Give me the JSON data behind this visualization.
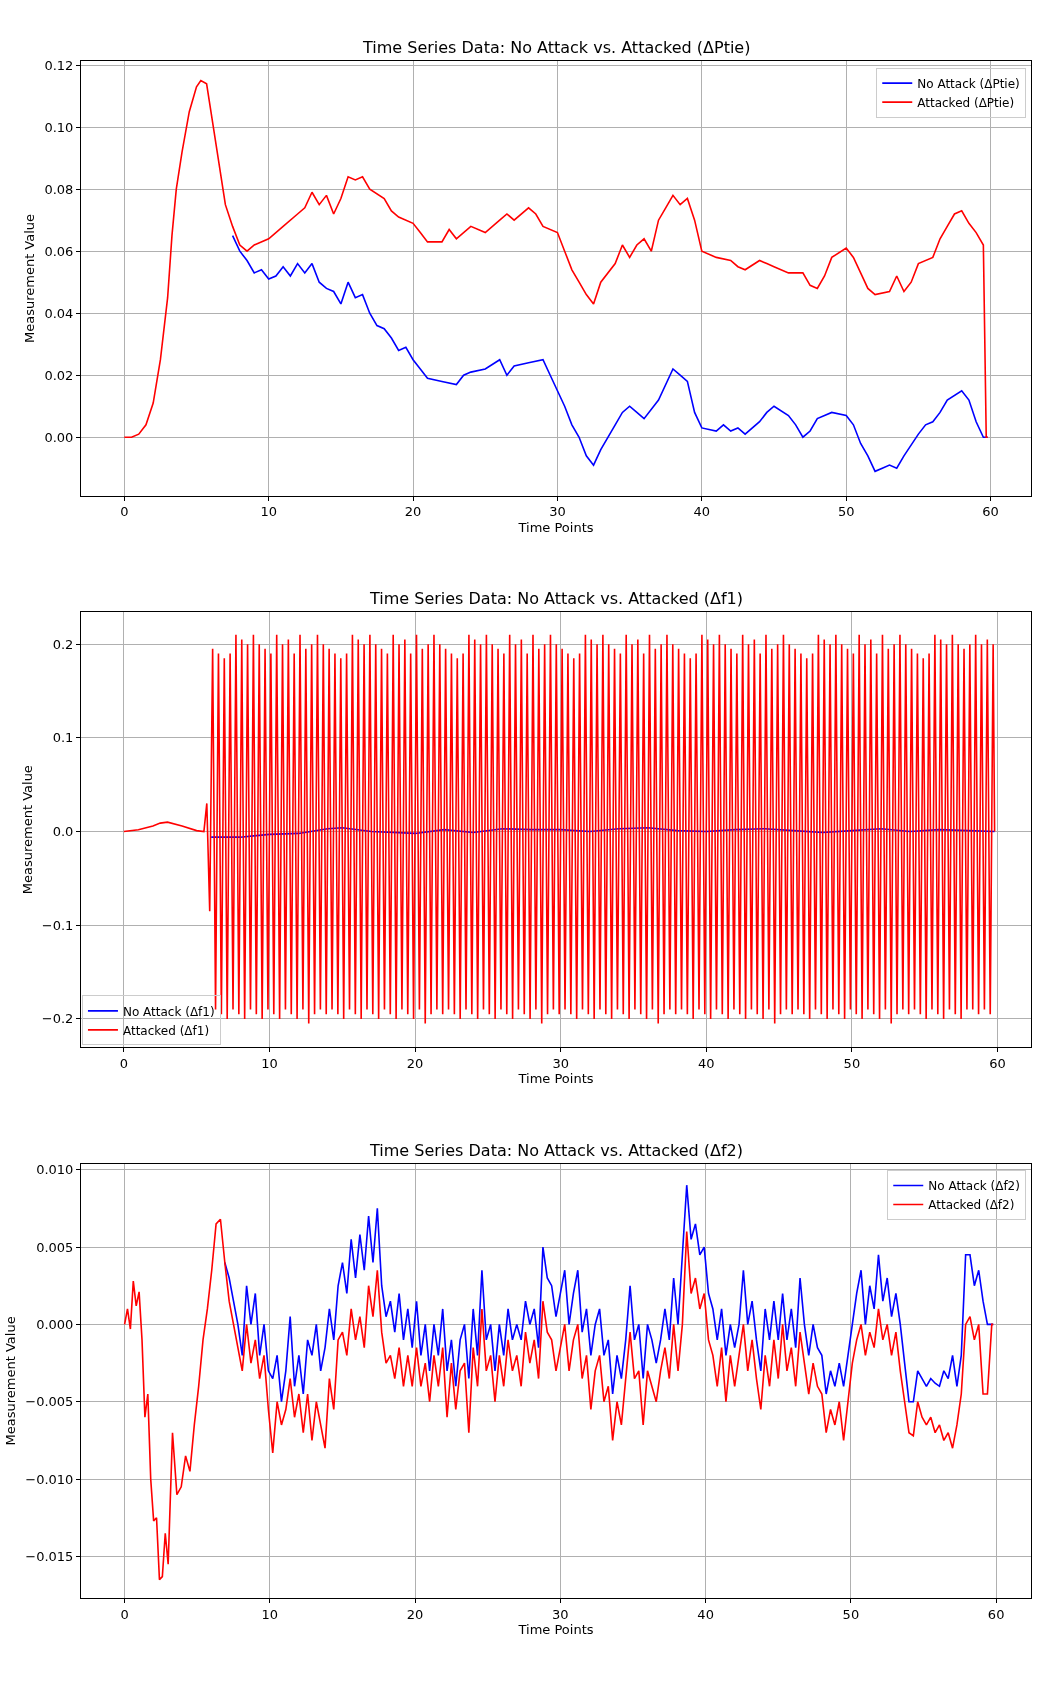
{
  "chart_data": [
    {
      "type": "line",
      "title": "Time Series Data: No Attack vs. Attacked (ΔPtie)",
      "xlabel": "Time Points",
      "ylabel": "Measurement Value",
      "grid": true,
      "legend": "top right",
      "xlim": [
        -3,
        62.8
      ],
      "ylim": [
        -0.0189,
        0.1213
      ],
      "xticks": [
        0,
        10,
        20,
        30,
        40,
        50,
        60
      ],
      "yticks": [
        {
          "value": 0,
          "label": "0.00"
        },
        {
          "value": 0.02,
          "label": "0.02"
        },
        {
          "value": 0.04,
          "label": "0.04"
        },
        {
          "value": 0.06,
          "label": "0.06"
        },
        {
          "value": 0.08,
          "label": "0.08"
        },
        {
          "value": 0.1,
          "label": "0.10"
        },
        {
          "value": 0.12,
          "label": "0.12"
        }
      ],
      "series": [
        {
          "name": "No Attack (ΔPtie)",
          "color": "#0000ff",
          "x": [
            7.5,
            8,
            8.5,
            9,
            9.5,
            10,
            10.5,
            11,
            11.5,
            12,
            12.5,
            13,
            13.5,
            14,
            14.5,
            15,
            15.5,
            16,
            16.5,
            17,
            17.5,
            18,
            18.5,
            19,
            19.5,
            20,
            20.5,
            21,
            22,
            23,
            23.5,
            24,
            25,
            26,
            26.5,
            27,
            28,
            29,
            29.5,
            30,
            30.5,
            31,
            31.5,
            32,
            32.5,
            33,
            34,
            34.5,
            35,
            35.5,
            36,
            37,
            38,
            38.5,
            39,
            39.5,
            40,
            41,
            41.5,
            42,
            42.5,
            43,
            44,
            44.5,
            45,
            46,
            46.5,
            47,
            47.5,
            48,
            49,
            50,
            50.5,
            51,
            51.5,
            52,
            52.5,
            53,
            53.5,
            54,
            55,
            55.5,
            56,
            56.5,
            57,
            58,
            58.5,
            59,
            59.5,
            59.8
          ],
          "values": [
            0.065,
            0.06,
            0.057,
            0.053,
            0.054,
            0.051,
            0.052,
            0.055,
            0.052,
            0.056,
            0.053,
            0.056,
            0.05,
            0.048,
            0.047,
            0.043,
            0.05,
            0.045,
            0.046,
            0.04,
            0.036,
            0.035,
            0.032,
            0.028,
            0.029,
            0.025,
            0.022,
            0.019,
            0.018,
            0.017,
            0.02,
            0.021,
            0.022,
            0.025,
            0.02,
            0.023,
            0.024,
            0.025,
            0.02,
            0.015,
            0.01,
            0.004,
            0.0,
            -0.006,
            -0.009,
            -0.004,
            0.004,
            0.008,
            0.01,
            0.008,
            0.006,
            0.012,
            0.022,
            0.02,
            0.018,
            0.008,
            0.003,
            0.002,
            0.004,
            0.002,
            0.003,
            0.001,
            0.005,
            0.008,
            0.01,
            0.007,
            0.004,
            0.0,
            0.002,
            0.006,
            0.008,
            0.007,
            0.004,
            -0.002,
            -0.006,
            -0.011,
            -0.01,
            -0.009,
            -0.01,
            -0.006,
            0.001,
            0.004,
            0.005,
            0.008,
            0.012,
            0.015,
            0.012,
            0.005,
            0.0,
            0.0
          ]
        },
        {
          "name": "Attacked (ΔPtie)",
          "color": "#ff0000",
          "x": [
            0,
            0.5,
            1,
            1.5,
            2,
            2.5,
            3,
            3.3,
            3.6,
            4,
            4.5,
            5,
            5.3,
            5.7,
            6,
            6.5,
            7,
            7.5,
            8,
            8.5,
            9,
            10,
            11,
            12,
            12.5,
            13,
            13.5,
            14,
            14.5,
            15,
            15.5,
            16,
            16.5,
            17,
            18,
            18.5,
            19,
            20,
            20.5,
            21,
            22,
            22.5,
            23,
            24,
            25,
            26,
            26.5,
            27,
            28,
            28.5,
            29,
            30,
            30.5,
            31,
            31.5,
            32,
            32.5,
            33,
            34,
            34.5,
            35,
            35.5,
            36,
            36.5,
            37,
            37.5,
            38,
            38.5,
            39,
            39.5,
            40,
            41,
            42,
            42.5,
            43,
            44,
            44.5,
            45,
            46,
            47,
            47.5,
            48,
            48.5,
            49,
            50,
            50.5,
            51,
            51.5,
            52,
            53,
            53.5,
            54,
            54.5,
            55,
            56,
            56.5,
            57,
            57.5,
            58,
            58.5,
            59,
            59.5,
            59.7,
            59.8
          ],
          "values": [
            0,
            0,
            0.001,
            0.004,
            0.011,
            0.025,
            0.045,
            0.065,
            0.08,
            0.092,
            0.105,
            0.113,
            0.115,
            0.114,
            0.105,
            0.09,
            0.075,
            0.068,
            0.062,
            0.06,
            0.062,
            0.064,
            0.068,
            0.072,
            0.074,
            0.079,
            0.075,
            0.078,
            0.072,
            0.077,
            0.084,
            0.083,
            0.084,
            0.08,
            0.077,
            0.073,
            0.071,
            0.069,
            0.066,
            0.063,
            0.063,
            0.067,
            0.064,
            0.068,
            0.066,
            0.07,
            0.072,
            0.07,
            0.074,
            0.072,
            0.068,
            0.066,
            0.06,
            0.054,
            0.05,
            0.046,
            0.043,
            0.05,
            0.056,
            0.062,
            0.058,
            0.062,
            0.064,
            0.06,
            0.07,
            0.074,
            0.078,
            0.075,
            0.077,
            0.07,
            0.06,
            0.058,
            0.057,
            0.055,
            0.054,
            0.057,
            0.056,
            0.055,
            0.053,
            0.053,
            0.049,
            0.048,
            0.052,
            0.058,
            0.061,
            0.058,
            0.053,
            0.048,
            0.046,
            0.047,
            0.052,
            0.047,
            0.05,
            0.056,
            0.058,
            0.064,
            0.068,
            0.072,
            0.073,
            0.069,
            0.066,
            0.062,
            0.0,
            0.0
          ]
        }
      ]
    },
    {
      "type": "line",
      "title": "Time Series Data: No Attack vs. Attacked (Δf1)",
      "xlabel": "Time Points",
      "ylabel": "Measurement Value",
      "grid": true,
      "legend": "bottom left",
      "xlim": [
        -2.94,
        62.3
      ],
      "ylim": [
        -0.23,
        0.234
      ],
      "xticks": [
        0,
        10,
        20,
        30,
        40,
        50,
        60
      ],
      "yticks": [
        {
          "value": -0.2,
          "label": "−0.2"
        },
        {
          "value": -0.1,
          "label": "−0.1"
        },
        {
          "value": 0,
          "label": "0.0"
        },
        {
          "value": 0.1,
          "label": "0.1"
        },
        {
          "value": 0.2,
          "label": "0.2"
        }
      ],
      "series": [
        {
          "name": "No Attack (Δf1)",
          "color": "#0000ff",
          "x": [
            6,
            8,
            10,
            12,
            14,
            15,
            17,
            20,
            22,
            24,
            26,
            28,
            30,
            32,
            34,
            36,
            38,
            40,
            42,
            44,
            46,
            48,
            50,
            52,
            54,
            56,
            58,
            59.8
          ],
          "values": [
            -0.006,
            -0.006,
            -0.003,
            -0.002,
            0.003,
            0.004,
            0.0,
            -0.002,
            0.002,
            -0.001,
            0.003,
            0.002,
            0.002,
            0.0,
            0.003,
            0.004,
            0.001,
            0.0,
            0.002,
            0.003,
            0.001,
            -0.001,
            0.001,
            0.003,
            0.0,
            0.002,
            0.001,
            0.0
          ]
        },
        {
          "name": "Attacked (Δf1)",
          "color": "#ff0000",
          "x": [
            0,
            1,
            2,
            2.5,
            3,
            4,
            5,
            5.5,
            5.7,
            5.9,
            6.1,
            6.3,
            6.5,
            6.7,
            6.9,
            7.1,
            7.3,
            7.5,
            7.7,
            7.9,
            8.1,
            8.3,
            8.5,
            8.7,
            8.9,
            9.1,
            9.3,
            9.5,
            9.7,
            9.9,
            10.1,
            10.3,
            10.5,
            10.7,
            10.9,
            11.1,
            11.3,
            11.5,
            11.7,
            11.9,
            12.1,
            12.3,
            12.5,
            12.7,
            12.9,
            13.1,
            13.3,
            13.5,
            13.7,
            13.9,
            14.1,
            14.3,
            14.5,
            14.7,
            14.9,
            15.1,
            15.3,
            15.5,
            15.7,
            15.9,
            16.1,
            16.3,
            16.5,
            16.7,
            16.9,
            17.1,
            17.3,
            17.5,
            17.7,
            17.9,
            18.1,
            18.3,
            18.5,
            18.7,
            18.9,
            19.1,
            19.3,
            19.5,
            19.7,
            19.9,
            20.1,
            20.3,
            20.5,
            20.7,
            20.9,
            21.1,
            21.3,
            21.5,
            21.7,
            21.9,
            22.1,
            22.3,
            22.5,
            22.7,
            22.9,
            23.1,
            23.3,
            23.5,
            23.7,
            23.9,
            24.1,
            24.3,
            24.5,
            24.7,
            24.9,
            25.1,
            25.3,
            25.5,
            25.7,
            25.9,
            26.1,
            26.3,
            26.5,
            26.7,
            26.9,
            27.1,
            27.3,
            27.5,
            27.7,
            27.9,
            28.1,
            28.3,
            28.5,
            28.7,
            28.9,
            29.1,
            29.3,
            29.5,
            29.7,
            29.9,
            30.1,
            30.3,
            30.5,
            30.7,
            30.9,
            31.1,
            31.3,
            31.5,
            31.7,
            31.9,
            32.1,
            32.3,
            32.5,
            32.7,
            32.9,
            33.1,
            33.3,
            33.5,
            33.7,
            33.9,
            34.1,
            34.3,
            34.5,
            34.7,
            34.9,
            35.1,
            35.3,
            35.5,
            35.7,
            35.9,
            36.1,
            36.3,
            36.5,
            36.7,
            36.9,
            37.1,
            37.3,
            37.5,
            37.7,
            37.9,
            38.1,
            38.3,
            38.5,
            38.7,
            38.9,
            39.1,
            39.3,
            39.5,
            39.7,
            39.9,
            40.1,
            40.3,
            40.5,
            40.7,
            40.9,
            41.1,
            41.3,
            41.5,
            41.7,
            41.9,
            42.1,
            42.3,
            42.5,
            42.7,
            42.9,
            43.1,
            43.3,
            43.5,
            43.7,
            43.9,
            44.1,
            44.3,
            44.5,
            44.7,
            44.9,
            45.1,
            45.3,
            45.5,
            45.7,
            45.9,
            46.1,
            46.3,
            46.5,
            46.7,
            46.9,
            47.1,
            47.3,
            47.5,
            47.7,
            47.9,
            48.1,
            48.3,
            48.5,
            48.7,
            48.9,
            49.1,
            49.3,
            49.5,
            49.7,
            49.9,
            50.1,
            50.3,
            50.5,
            50.7,
            50.9,
            51.1,
            51.3,
            51.5,
            51.7,
            51.9,
            52.1,
            52.3,
            52.5,
            52.7,
            52.9,
            53.1,
            53.3,
            53.5,
            53.7,
            53.9,
            54.1,
            54.3,
            54.5,
            54.7,
            54.9,
            55.1,
            55.3,
            55.5,
            55.7,
            55.9,
            56.1,
            56.3,
            56.5,
            56.7,
            56.9,
            57.1,
            57.3,
            57.5,
            57.7,
            57.9,
            58.1,
            58.3,
            58.5,
            58.7,
            58.9,
            59.1,
            59.3,
            59.5,
            59.7,
            59.8
          ],
          "values": [
            0,
            0.002,
            0.006,
            0.009,
            0.01,
            0.006,
            0.001,
            0.0,
            0.03,
            -0.085,
            0.195,
            -0.19,
            0.19,
            -0.195,
            0.185,
            -0.2,
            0.19,
            -0.19,
            0.21,
            -0.195,
            0.205,
            -0.2,
            0.2,
            -0.19,
            0.21,
            -0.195,
            0.2,
            -0.2,
            0.195,
            -0.19,
            0.19,
            -0.195,
            0.21,
            -0.2,
            0.2,
            -0.19,
            0.205,
            -0.195,
            0.19,
            -0.2,
            0.21,
            -0.19,
            0.195,
            -0.205,
            0.2,
            -0.195,
            0.21,
            -0.19,
            0.2,
            -0.195,
            0.195,
            -0.19,
            0.19,
            -0.195,
            0.185,
            -0.2,
            0.19,
            -0.19,
            0.21,
            -0.195,
            0.205,
            -0.2,
            0.2,
            -0.19,
            0.21,
            -0.195,
            0.2,
            -0.2,
            0.195,
            -0.19,
            0.19,
            -0.195,
            0.21,
            -0.2,
            0.2,
            -0.19,
            0.205,
            -0.195,
            0.19,
            -0.2,
            0.21,
            -0.19,
            0.195,
            -0.205,
            0.2,
            -0.195,
            0.21,
            -0.19,
            0.2,
            -0.195,
            0.195,
            -0.19,
            0.19,
            -0.195,
            0.185,
            -0.2,
            0.19,
            -0.19,
            0.21,
            -0.195,
            0.205,
            -0.2,
            0.2,
            -0.19,
            0.21,
            -0.195,
            0.2,
            -0.2,
            0.195,
            -0.19,
            0.19,
            -0.195,
            0.21,
            -0.2,
            0.2,
            -0.19,
            0.205,
            -0.195,
            0.19,
            -0.2,
            0.21,
            -0.19,
            0.195,
            -0.205,
            0.2,
            -0.195,
            0.21,
            -0.19,
            0.2,
            -0.195,
            0.195,
            -0.19,
            0.19,
            -0.195,
            0.185,
            -0.2,
            0.19,
            -0.19,
            0.21,
            -0.195,
            0.205,
            -0.2,
            0.2,
            -0.19,
            0.21,
            -0.195,
            0.2,
            -0.2,
            0.195,
            -0.19,
            0.19,
            -0.195,
            0.21,
            -0.2,
            0.2,
            -0.19,
            0.205,
            -0.195,
            0.19,
            -0.2,
            0.21,
            -0.19,
            0.195,
            -0.205,
            0.2,
            -0.195,
            0.21,
            -0.19,
            0.2,
            -0.195,
            0.195,
            -0.19,
            0.19,
            -0.195,
            0.185,
            -0.2,
            0.19,
            -0.19,
            0.21,
            -0.195,
            0.205,
            -0.2,
            0.2,
            -0.19,
            0.21,
            -0.195,
            0.2,
            -0.2,
            0.195,
            -0.19,
            0.19,
            -0.195,
            0.21,
            -0.2,
            0.2,
            -0.19,
            0.205,
            -0.195,
            0.19,
            -0.2,
            0.21,
            -0.19,
            0.195,
            -0.205,
            0.2,
            -0.195,
            0.21,
            -0.19,
            0.2,
            -0.195,
            0.195,
            -0.19,
            0.19,
            -0.195,
            0.185,
            -0.2,
            0.19,
            -0.19,
            0.21,
            -0.195,
            0.205,
            -0.2,
            0.2,
            -0.19,
            0.21,
            -0.195,
            0.2,
            -0.2,
            0.195,
            -0.19,
            0.19,
            -0.195,
            0.21,
            -0.2,
            0.2,
            -0.19,
            0.205,
            -0.195,
            0.19,
            -0.2,
            0.21,
            -0.19,
            0.195,
            -0.205,
            0.2,
            -0.195,
            0.21,
            -0.19,
            0.2,
            -0.195,
            0.195,
            -0.19,
            0.19,
            -0.195,
            0.185,
            -0.2,
            0.19,
            -0.19,
            0.21,
            -0.195,
            0.205,
            -0.2,
            0.2,
            -0.19,
            0.21,
            -0.195,
            0.2,
            -0.2,
            0.195,
            -0.19,
            0.2,
            -0.19,
            0.21,
            -0.195,
            0.2,
            -0.19,
            0.205,
            -0.195,
            0.2,
            0.0
          ]
        }
      ]
    },
    {
      "type": "line",
      "title": "Time Series Data: No Attack vs. Attacked (Δf2)",
      "xlabel": "Time Points",
      "ylabel": "Measurement Value",
      "grid": true,
      "legend": "top right",
      "xlim": [
        -3,
        62.4
      ],
      "ylim": [
        -0.0177,
        0.0104
      ],
      "xticks": [
        0,
        10,
        20,
        30,
        40,
        50,
        60
      ],
      "yticks": [
        {
          "value": -0.015,
          "label": "−0.015"
        },
        {
          "value": -0.01,
          "label": "−0.010"
        },
        {
          "value": -0.005,
          "label": "−0.005"
        },
        {
          "value": 0,
          "label": "0.000"
        },
        {
          "value": 0.005,
          "label": "0.005"
        },
        {
          "value": 0.01,
          "label": "0.010"
        }
      ],
      "x": [
        0,
        0.2,
        0.4,
        0.6,
        0.8,
        1.0,
        1.2,
        1.4,
        1.6,
        1.8,
        2.0,
        2.2,
        2.4,
        2.6,
        2.8,
        3.0,
        3.3,
        3.6,
        3.9,
        4.2,
        4.5,
        4.8,
        5.1,
        5.4,
        5.7,
        6.0,
        6.3,
        6.6,
        6.9,
        7.2,
        7.5,
        7.8,
        8.1,
        8.4,
        8.7,
        9.0,
        9.3,
        9.6,
        9.9,
        10.2,
        10.5,
        10.8,
        11.1,
        11.4,
        11.7,
        12.0,
        12.3,
        12.6,
        12.9,
        13.2,
        13.5,
        13.8,
        14.1,
        14.4,
        14.7,
        15.0,
        15.3,
        15.6,
        15.9,
        16.2,
        16.5,
        16.8,
        17.1,
        17.4,
        17.7,
        18.0,
        18.3,
        18.6,
        18.9,
        19.2,
        19.5,
        19.8,
        20.1,
        20.4,
        20.7,
        21.0,
        21.3,
        21.6,
        21.9,
        22.2,
        22.5,
        22.8,
        23.1,
        23.4,
        23.7,
        24.0,
        24.3,
        24.6,
        24.9,
        25.2,
        25.5,
        25.8,
        26.1,
        26.4,
        26.7,
        27.0,
        27.3,
        27.6,
        27.9,
        28.2,
        28.5,
        28.8,
        29.1,
        29.4,
        29.7,
        30.0,
        30.3,
        30.6,
        30.9,
        31.2,
        31.5,
        31.8,
        32.1,
        32.4,
        32.7,
        33.0,
        33.3,
        33.6,
        33.9,
        34.2,
        34.5,
        34.8,
        35.1,
        35.4,
        35.7,
        36.0,
        36.3,
        36.6,
        36.9,
        37.2,
        37.5,
        37.8,
        38.1,
        38.4,
        38.7,
        39.0,
        39.3,
        39.6,
        39.9,
        40.2,
        40.5,
        40.8,
        41.1,
        41.4,
        41.7,
        42.0,
        42.3,
        42.6,
        42.9,
        43.2,
        43.5,
        43.8,
        44.1,
        44.4,
        44.7,
        45.0,
        45.3,
        45.6,
        45.9,
        46.2,
        46.5,
        46.8,
        47.1,
        47.4,
        47.7,
        48.0,
        48.3,
        48.6,
        48.9,
        49.2,
        49.5,
        49.8,
        50.1,
        50.4,
        50.7,
        51.0,
        51.3,
        51.6,
        51.9,
        52.2,
        52.5,
        52.8,
        53.1,
        53.4,
        53.7,
        54.0,
        54.3,
        54.6,
        54.9,
        55.2,
        55.5,
        55.8,
        56.1,
        56.4,
        56.7,
        57.0,
        57.3,
        57.6,
        57.9,
        58.2,
        58.5,
        58.8,
        59.1,
        59.4,
        59.7,
        59.8
      ],
      "series": [
        {
          "name": "No Attack (Δf2)",
          "color": "#0000ff",
          "x": [
            6.9,
            7.2,
            7.5,
            7.8,
            8.1,
            8.4,
            8.7,
            9.0,
            9.3,
            9.6,
            9.9,
            10.2,
            10.5,
            10.8,
            11.1,
            11.4,
            11.7,
            12.0,
            12.3,
            12.6,
            12.9,
            13.2,
            13.5,
            13.8,
            14.1,
            14.4,
            14.7,
            15.0,
            15.3,
            15.6,
            15.9,
            16.2,
            16.5,
            16.8,
            17.1,
            17.4,
            17.7,
            18.0,
            18.3,
            18.6,
            18.9,
            19.2,
            19.5,
            19.8,
            20.1,
            20.4,
            20.7,
            21.0,
            21.3,
            21.6,
            21.9,
            22.2,
            22.5,
            22.8,
            23.1,
            23.4,
            23.7,
            24.0,
            24.3,
            24.6,
            24.9,
            25.2,
            25.5,
            25.8,
            26.1,
            26.4,
            26.7,
            27.0,
            27.3,
            27.6,
            27.9,
            28.2,
            28.5,
            28.8,
            29.1,
            29.4,
            29.7,
            30.0,
            30.3,
            30.6,
            30.9,
            31.2,
            31.5,
            31.8,
            32.1,
            32.4,
            32.7,
            33.0,
            33.3,
            33.6,
            33.9,
            34.2,
            34.5,
            34.8,
            35.1,
            35.4,
            35.7,
            36.0,
            36.3,
            36.6,
            36.9,
            37.2,
            37.5,
            37.8,
            38.1,
            38.4,
            38.7,
            39.0,
            39.3,
            39.6,
            39.9,
            40.2,
            40.5,
            40.8,
            41.1,
            41.4,
            41.7,
            42.0,
            42.3,
            42.6,
            42.9,
            43.2,
            43.5,
            43.8,
            44.1,
            44.4,
            44.7,
            45.0,
            45.3,
            45.6,
            45.9,
            46.2,
            46.5,
            46.8,
            47.1,
            47.4,
            47.7,
            48.0,
            48.3,
            48.6,
            48.9,
            49.2,
            49.5,
            49.8,
            50.1,
            50.4,
            50.7,
            51.0,
            51.3,
            51.6,
            51.9,
            52.2,
            52.5,
            52.8,
            53.1,
            53.4,
            53.7,
            54.0,
            54.3,
            54.6,
            54.9,
            55.2,
            55.5,
            55.8,
            56.1,
            56.4,
            56.7,
            57.0,
            57.3,
            57.6,
            57.9,
            58.2,
            58.5,
            58.8,
            59.1,
            59.4,
            59.7,
            59.8
          ],
          "values": [
            0.004,
            0.003,
            0.0015,
            0.0,
            -0.002,
            0.0025,
            0.0,
            0.002,
            -0.002,
            0.0,
            -0.003,
            -0.0035,
            -0.002,
            -0.005,
            -0.003,
            0.0005,
            -0.004,
            -0.002,
            -0.0045,
            -0.001,
            -0.002,
            0.0,
            -0.003,
            -0.0015,
            0.001,
            -0.001,
            0.0025,
            0.004,
            0.002,
            0.0055,
            0.003,
            0.0058,
            0.0035,
            0.007,
            0.004,
            0.0075,
            0.0025,
            0.0005,
            0.0015,
            -0.0005,
            0.002,
            -0.001,
            0.001,
            -0.0015,
            0.0015,
            -0.002,
            0.0,
            -0.003,
            0.0,
            -0.002,
            0.001,
            -0.003,
            -0.001,
            -0.004,
            -0.001,
            0.0,
            -0.0035,
            0.001,
            -0.002,
            0.0035,
            -0.001,
            0.0,
            -0.003,
            0.0,
            -0.002,
            0.001,
            -0.001,
            0.0,
            -0.001,
            0.0015,
            0.0,
            0.001,
            -0.0015,
            0.005,
            0.003,
            0.0025,
            0.0005,
            0.002,
            0.0035,
            0.0,
            0.002,
            0.0035,
            -0.0005,
            0.001,
            -0.002,
            0.0,
            0.001,
            -0.002,
            -0.001,
            -0.0045,
            -0.002,
            -0.0035,
            -0.001,
            0.0025,
            -0.001,
            0.0,
            -0.0035,
            0.0,
            -0.001,
            -0.0025,
            -0.001,
            0.001,
            -0.001,
            0.003,
            0.0,
            0.0045,
            0.009,
            0.0055,
            0.0065,
            0.0045,
            0.005,
            0.002,
            0.001,
            -0.001,
            0.001,
            -0.002,
            0.0,
            -0.0015,
            0.0,
            0.0035,
            0.0,
            0.0015,
            -0.001,
            -0.003,
            0.001,
            -0.001,
            0.0015,
            -0.001,
            0.002,
            -0.001,
            0.001,
            -0.0015,
            0.003,
            0.0,
            -0.002,
            0.0,
            -0.0015,
            -0.002,
            -0.0045,
            -0.003,
            -0.004,
            -0.0025,
            -0.004,
            -0.002,
            0.0,
            0.002,
            0.0035,
            0.0,
            0.0025,
            0.001,
            0.0045,
            0.0015,
            0.003,
            0.0005,
            0.002,
            0.0,
            -0.0025,
            -0.005,
            -0.005,
            -0.003,
            -0.0035,
            -0.004,
            -0.0035,
            -0.0038,
            -0.004,
            -0.003,
            -0.0035,
            -0.002,
            -0.004,
            -0.002,
            0.0045,
            0.0045,
            0.0025,
            0.0035,
            0.0015,
            0.0,
            0.0,
            0.0
          ]
        },
        {
          "name": "Attacked (Δf2)",
          "color": "#ff0000",
          "values": [
            0,
            0.001,
            -0.0003,
            0.0028,
            0.0012,
            0.0021,
            -0.001,
            -0.006,
            -0.0045,
            -0.01,
            -0.0127,
            -0.0125,
            -0.0165,
            -0.0163,
            -0.0135,
            -0.0155,
            -0.007,
            -0.011,
            -0.0105,
            -0.0085,
            -0.0095,
            -0.0065,
            -0.004,
            -0.001,
            0.001,
            0.0035,
            0.0065,
            0.0068,
            0.004,
            0.0015,
            0.0,
            -0.0015,
            -0.003,
            0.0,
            -0.0025,
            -0.001,
            -0.0035,
            -0.002,
            -0.0055,
            -0.0083,
            -0.005,
            -0.0065,
            -0.0055,
            -0.0035,
            -0.006,
            -0.0045,
            -0.007,
            -0.0045,
            -0.0075,
            -0.005,
            -0.0065,
            -0.008,
            -0.0035,
            -0.0055,
            -0.001,
            -0.0005,
            -0.002,
            0.001,
            -0.001,
            0.0005,
            -0.0015,
            0.0025,
            0.0005,
            0.0035,
            -0.0005,
            -0.0025,
            -0.002,
            -0.0035,
            -0.0015,
            -0.004,
            -0.002,
            -0.004,
            -0.0015,
            -0.004,
            -0.0025,
            -0.005,
            -0.002,
            -0.004,
            -0.0015,
            -0.006,
            -0.0025,
            -0.0055,
            -0.003,
            -0.0025,
            -0.007,
            -0.0015,
            -0.004,
            0.001,
            -0.003,
            -0.002,
            -0.005,
            -0.002,
            -0.004,
            -0.001,
            -0.003,
            -0.002,
            -0.004,
            -0.0005,
            -0.0025,
            -0.001,
            -0.0035,
            0.0015,
            -0.0005,
            -0.001,
            -0.003,
            -0.0015,
            0.0,
            -0.003,
            -0.001,
            0.0,
            -0.0035,
            -0.002,
            -0.0055,
            -0.003,
            -0.002,
            -0.005,
            -0.004,
            -0.0075,
            -0.005,
            -0.0065,
            -0.0035,
            -0.0005,
            -0.0035,
            -0.003,
            -0.0065,
            -0.003,
            -0.004,
            -0.005,
            -0.003,
            -0.0015,
            -0.0035,
            0.0,
            -0.003,
            0.0,
            0.006,
            0.002,
            0.003,
            0.001,
            0.002,
            -0.001,
            -0.002,
            -0.004,
            -0.0015,
            -0.005,
            -0.002,
            -0.004,
            -0.002,
            0.0,
            -0.003,
            -0.001,
            -0.0035,
            -0.0055,
            -0.002,
            -0.004,
            -0.001,
            -0.0035,
            0.0,
            -0.003,
            -0.0015,
            -0.004,
            -0.0005,
            -0.0025,
            -0.0045,
            -0.0025,
            -0.004,
            -0.0045,
            -0.007,
            -0.0055,
            -0.0065,
            -0.005,
            -0.0075,
            -0.005,
            -0.0025,
            -0.001,
            0.0,
            -0.002,
            -0.0005,
            -0.0015,
            0.001,
            -0.001,
            0.0,
            -0.002,
            -0.0005,
            -0.003,
            -0.005,
            -0.007,
            -0.0072,
            -0.005,
            -0.006,
            -0.0065,
            -0.006,
            -0.007,
            -0.0065,
            -0.0075,
            -0.007,
            -0.008,
            -0.0065,
            -0.0045,
            0.0,
            0.0005,
            -0.001,
            0.0,
            -0.0045,
            -0.0045,
            0.0,
            0.0
          ]
        }
      ]
    }
  ]
}
